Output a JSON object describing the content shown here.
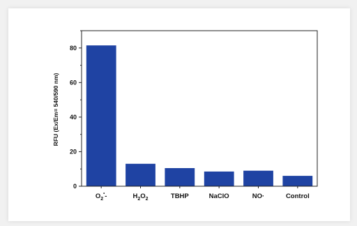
{
  "chart_data": {
    "type": "bar",
    "categories": [
      "O2·-",
      "H2O2",
      "TBHP",
      "NaClO",
      "NO·",
      "Control"
    ],
    "category_labels": [
      {
        "base": "O",
        "sub": "2",
        "sup": "•",
        "tail": "-"
      },
      {
        "base": "H",
        "sub": "2",
        "mid": "O",
        "sub2": "2"
      },
      {
        "base": "TBHP"
      },
      {
        "base": "NaClO"
      },
      {
        "base": "NO·"
      },
      {
        "base": "Control"
      }
    ],
    "values": [
      81.5,
      13,
      10.5,
      8.5,
      9,
      6
    ],
    "title": "",
    "xlabel": "",
    "ylabel": "RFU (Ex/Em= 540/590 nm)",
    "ylim": [
      0,
      90
    ],
    "yticks": [
      0,
      20,
      40,
      60,
      80
    ],
    "bar_color": "#1f43a3",
    "grid": false
  }
}
